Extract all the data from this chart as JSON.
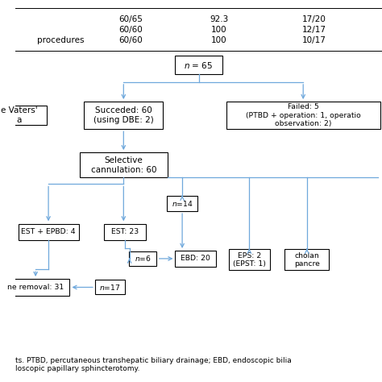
{
  "bg_color": "#ffffff",
  "arrow_color": "#6fa8dc",
  "box_edge_color": "#000000",
  "text_color": "#000000",
  "table_rows": [
    {
      "label": "",
      "col1": "60/65",
      "col2": "92.3",
      "col3": "17/20"
    },
    {
      "label": "",
      "col1": "60/60",
      "col2": "100",
      "col3": "12/17"
    },
    {
      "label": "procedures",
      "col1": "60/60",
      "col2": "100",
      "col3": "10/17"
    }
  ],
  "font_size_node": 7.5,
  "font_size_table": 7.5,
  "font_size_footer": 6.5
}
